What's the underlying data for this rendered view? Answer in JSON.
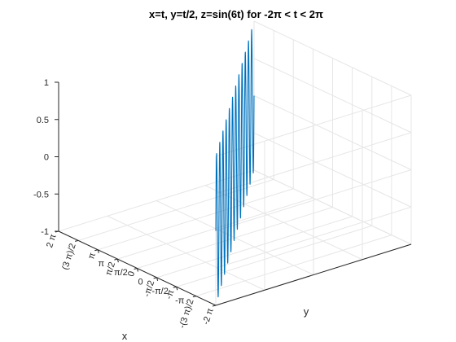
{
  "chart_data": {
    "type": "line",
    "title": "x=t,  y=t/2,  z=sin(6t)  for  -2π  <  t  <  2π",
    "xlabel": "x",
    "ylabel": "y",
    "zlabel": "",
    "view": "3d",
    "grid": true,
    "box": false,
    "line_color": "#0072BD",
    "series": [
      {
        "x_expr": "t",
        "y_expr": "t/2",
        "z_expr": "sin(6t)",
        "t_range": [
          -6.283185,
          6.283185
        ],
        "samples": 900
      }
    ],
    "xlim": [
      -6.283185,
      6.283185
    ],
    "ylim": [
      -3.141593,
      3.141593
    ],
    "zlim": [
      -1,
      1
    ],
    "x_ticks": [
      {
        "value": -6.283185,
        "label": "-2 π"
      },
      {
        "value": -4.712389,
        "label": "-(3 π)/2"
      },
      {
        "value": -3.141593,
        "label": "-π"
      },
      {
        "value": -1.570796,
        "label": "-π/2"
      },
      {
        "value": 0,
        "label": "0"
      },
      {
        "value": 1.570796,
        "label": "π/2"
      },
      {
        "value": 3.141593,
        "label": "π"
      },
      {
        "value": 4.712389,
        "label": "(3 π)/2"
      },
      {
        "value": 6.283185,
        "label": "2 π"
      }
    ],
    "y_ticks": [
      {
        "value": -3.141593,
        "label": "-π"
      },
      {
        "value": -1.570796,
        "label": "-π/2"
      },
      {
        "value": 0,
        "label": "0"
      },
      {
        "value": 1.570796,
        "label": "π/2"
      },
      {
        "value": 3.141593,
        "label": "π"
      }
    ],
    "z_ticks": [
      {
        "value": -1,
        "label": "-1"
      },
      {
        "value": -0.5,
        "label": "-0.5"
      },
      {
        "value": 0,
        "label": "0"
      },
      {
        "value": 0.5,
        "label": "0.5"
      },
      {
        "value": 1,
        "label": "1"
      }
    ]
  }
}
